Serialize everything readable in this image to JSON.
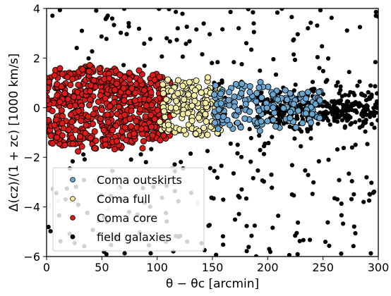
{
  "chart_data": {
    "type": "scatter",
    "title": "",
    "xlabel": "θ − θc [arcmin]",
    "ylabel": "Δ(cz)/(1 + zc) [1000 km/s]",
    "xlim": [
      0,
      300
    ],
    "ylim": [
      -6,
      4
    ],
    "xticks": [
      0,
      50,
      100,
      150,
      200,
      250,
      300
    ],
    "yticks": [
      -6,
      -4,
      -2,
      0,
      2,
      4
    ],
    "xtick_labels": [
      "0",
      "50",
      "100",
      "150",
      "200",
      "250",
      "300"
    ],
    "ytick_labels": [
      "−6",
      "−4",
      "−2",
      "0",
      "2",
      "4"
    ],
    "grid": false,
    "legend_position": "lower-left",
    "legend": [
      {
        "label": "Coma outskirts",
        "color": "#6aa6cf"
      },
      {
        "label": "Coma full",
        "color": "#fbf1a6"
      },
      {
        "label": "Coma core",
        "color": "#dd1a1a"
      },
      {
        "label": "field galaxies",
        "color": "#000000"
      }
    ],
    "series": [
      {
        "label": "Coma core",
        "color": "#dd1a1a",
        "x_range": [
          0,
          112
        ],
        "y_spread_edge": 1.25,
        "y_spread_center": 1.75,
        "count": 620
      },
      {
        "label": "Coma full",
        "color": "#fbf1a6",
        "x_range": [
          102,
          158
        ],
        "y_spread_edge": 1.15,
        "y_spread_center": 1.1,
        "count": 170
      },
      {
        "label": "Coma outskirts",
        "color": "#6aa6cf",
        "x_range": [
          150,
          248
        ],
        "y_spread_edge": 0.6,
        "y_spread_center": 1.05,
        "count": 170
      },
      {
        "label": "field galaxies",
        "color": "#000000",
        "components": [
          {
            "kind": "band",
            "x_range": [
              190,
              300
            ],
            "y_center": -0.05,
            "y_spread": 0.65,
            "count": 330
          },
          {
            "kind": "scatter",
            "x_range": [
              0,
              300
            ],
            "y_range": [
              -6,
              4
            ],
            "count": 340
          },
          {
            "kind": "faint",
            "color": "#c8c8c8",
            "count": 8
          }
        ]
      }
    ]
  }
}
